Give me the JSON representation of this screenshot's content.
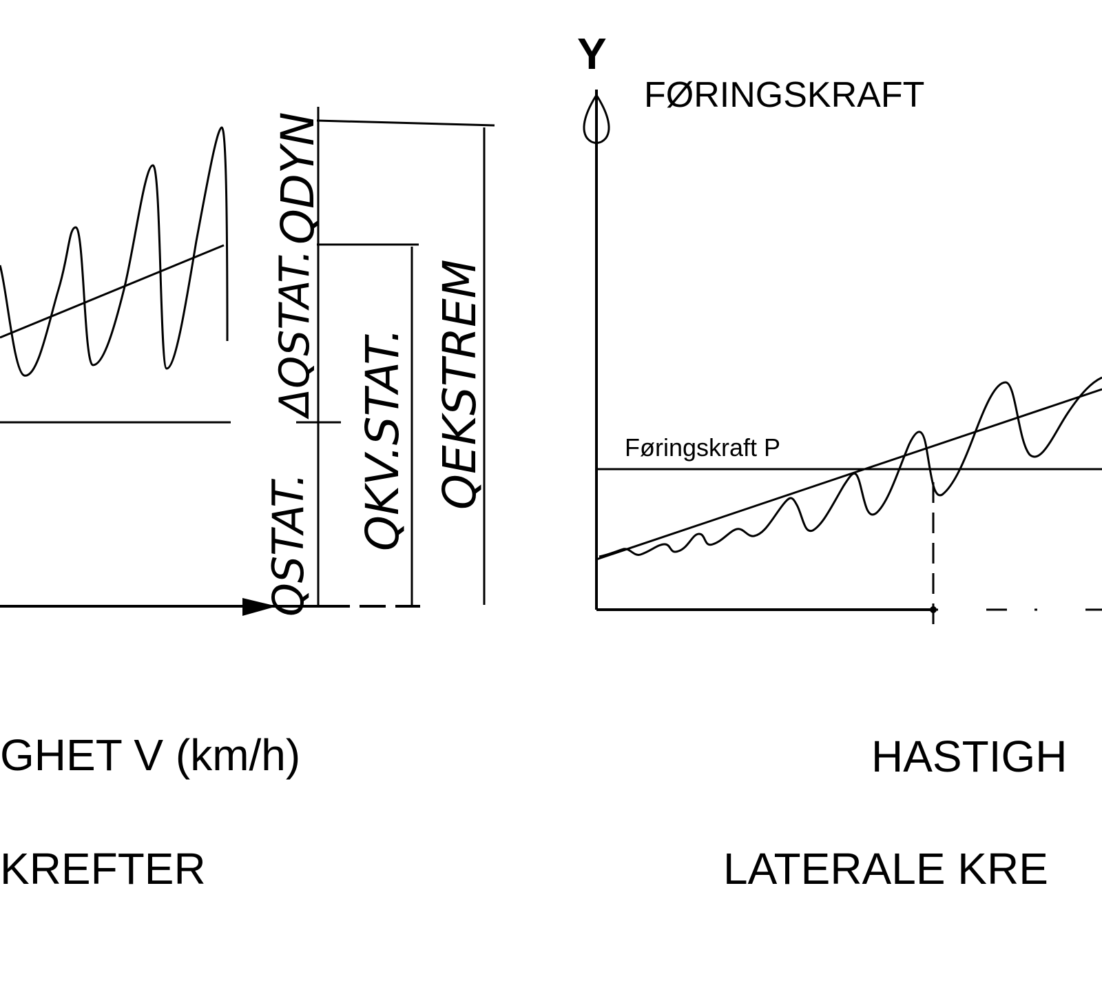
{
  "left_panel": {
    "labels": {
      "q_dyn": "QDYN",
      "delta_q_stat": "ΔQSTAT.",
      "q_stat": "QSTAT.",
      "q_kv_stat": "QKV.STAT.",
      "q_ekstrem": "QEKSTREM"
    },
    "speed_axis_label": "GHET V (km/h)",
    "caption": "KREFTER"
  },
  "right_panel": {
    "y_axis_letter": "Y",
    "y_axis_title": "FØRINGSKRAFT",
    "limit_line_label": "Føringskraft P",
    "speed_axis_label": "HASTIGH",
    "caption": "LATERALE KRE"
  }
}
